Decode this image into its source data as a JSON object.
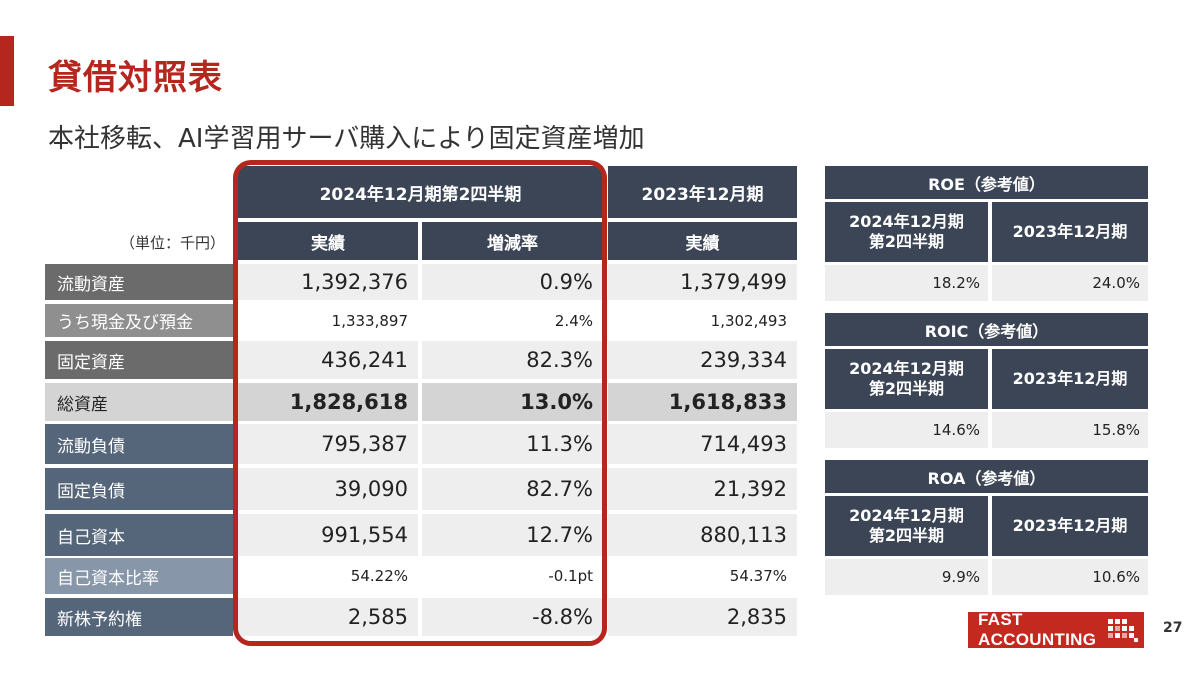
{
  "title": "貸借対照表",
  "subtitle": "本社移転、AI学習用サーバ購入により固定資産増加",
  "unit_label": "（単位：千円）",
  "table": {
    "period_header_current": "2024年12月期第2四半期",
    "period_header_prev": "2023年12月期",
    "col_actual": "実績",
    "col_change": "増減率",
    "col_actual_prev": "実績",
    "rows": [
      {
        "label": "流動資産",
        "current": "1,392,376",
        "change": "0.9%",
        "prev": "1,379,499"
      },
      {
        "label": "うち現金及び預金",
        "current": "1,333,897",
        "change": "2.4%",
        "prev": "1,302,493"
      },
      {
        "label": "固定資産",
        "current": "436,241",
        "change": "82.3%",
        "prev": "239,334"
      },
      {
        "label": "総資産",
        "current": "1,828,618",
        "change": "13.0%",
        "prev": "1,618,833"
      },
      {
        "label": "流動負債",
        "current": "795,387",
        "change": "11.3%",
        "prev": "714,493"
      },
      {
        "label": "固定負債",
        "current": "39,090",
        "change": "82.7%",
        "prev": "21,392"
      },
      {
        "label": "自己資本",
        "current": "991,554",
        "change": "12.7%",
        "prev": "880,113"
      },
      {
        "label": "自己資本比率",
        "current": "54.22%",
        "change": "-0.1pt",
        "prev": "54.37%"
      },
      {
        "label": "新株予約権",
        "current": "2,585",
        "change": "-8.8%",
        "prev": "2,835"
      }
    ]
  },
  "ratios": [
    {
      "title": "ROE（参考値）",
      "col1": "2024年12月期\n第2四半期",
      "col2": "2023年12月期",
      "val1": "18.2%",
      "val2": "24.0%"
    },
    {
      "title": "ROIC（参考値）",
      "col1": "2024年12月期\n第2四半期",
      "col2": "2023年12月期",
      "val1": "14.6%",
      "val2": "15.8%"
    },
    {
      "title": "ROA（参考値）",
      "col1": "2024年12月期\n第2四半期",
      "col2": "2023年12月期",
      "val1": "9.9%",
      "val2": "10.6%"
    }
  ],
  "logo_text": "FAST ACCOUNTING",
  "page_number": "27",
  "colors": {
    "accent": "#b5261e",
    "header": "#3b4555"
  }
}
